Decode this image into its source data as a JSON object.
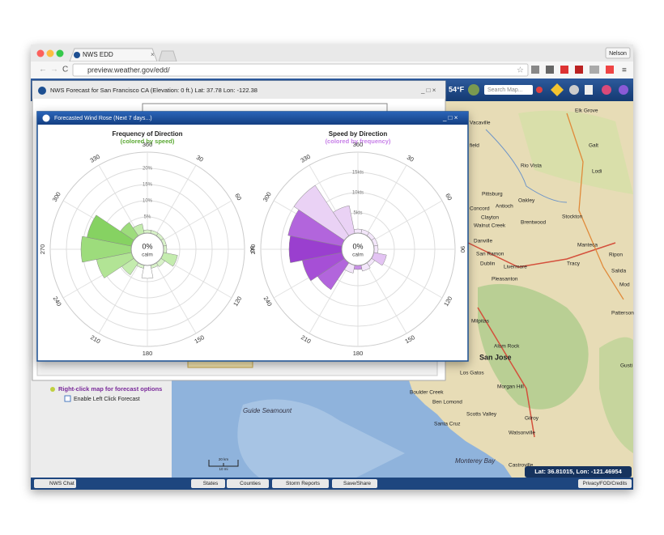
{
  "browser": {
    "tab_title": "NWS EDD",
    "url": "preview.weather.gov/edd/",
    "user": "Nelson"
  },
  "app": {
    "temperature": "54°F",
    "search_placeholder": "Search Map..."
  },
  "forecast_window": {
    "title": "NWS Forecast for San Francisco CA (Elevation: 0 ft.) Lat: 37.78 Lon: -122.38"
  },
  "wind_rose": {
    "title": "Forecasted Wind Rose (Next 7 days...)",
    "charts": [
      {
        "type": "wind_rose",
        "title": "Frequency of Direction",
        "subtitle": "(colored by speed)",
        "subtitle_color": "#5aa832",
        "center_label": "0%",
        "center_sublabel": "calm",
        "angle_ticks": [
          360,
          30,
          60,
          90,
          120,
          150,
          180,
          210,
          240,
          270,
          300,
          330
        ],
        "rlim": [
          0,
          25
        ],
        "rticks": [
          {
            "value": 5,
            "label": "5%"
          },
          {
            "value": 10,
            "label": "10%"
          },
          {
            "value": 15,
            "label": "15%"
          },
          {
            "value": 20,
            "label": "20%"
          }
        ],
        "directions": [
          0,
          22.5,
          45,
          67.5,
          90,
          112.5,
          135,
          157.5,
          180,
          202.5,
          225,
          247.5,
          270,
          292.5,
          315,
          337.5
        ],
        "values": [
          1,
          1,
          1,
          1,
          1,
          4.5,
          1.5,
          1,
          4,
          1,
          4.5,
          11,
          15.5,
          14,
          5,
          3
        ],
        "colors": [
          "#d8f2c8",
          "#d8f2c8",
          "#d8f2c8",
          "#d8f2c8",
          "#d8f2c8",
          "#c4ecae",
          "#d8f2c8",
          "#d8f2c8",
          "#ffffff",
          "#d8f2c8",
          "#c4ecae",
          "#b2e495",
          "#9ddc7c",
          "#86d262",
          "#9ddc7c",
          "#c4ecae"
        ]
      },
      {
        "type": "wind_rose",
        "title": "Speed by Direction",
        "subtitle": "(colored by frequency)",
        "subtitle_color": "#c77fe8",
        "center_label": "0%",
        "center_sublabel": "calm",
        "angle_ticks": [
          360,
          30,
          60,
          90,
          120,
          150,
          180,
          210,
          240,
          270,
          300,
          330
        ],
        "rlim": [
          0,
          20
        ],
        "rticks": [
          {
            "value": 5,
            "label": "5kts"
          },
          {
            "value": 10,
            "label": "10kts"
          },
          {
            "value": 15,
            "label": "15kts"
          }
        ],
        "directions": [
          0,
          22.5,
          45,
          67.5,
          90,
          112.5,
          135,
          157.5,
          180,
          202.5,
          225,
          247.5,
          270,
          292.5,
          315,
          337.5
        ],
        "values": [
          1,
          1,
          1,
          1,
          1,
          3.2,
          1,
          1.5,
          1,
          2,
          8,
          10,
          13,
          13.6,
          15,
          7
        ],
        "colors": [
          "#f3e6fa",
          "#f3e6fa",
          "#f3e6fa",
          "#f3e6fa",
          "#f3e6fa",
          "#e3c3f3",
          "#f3e6fa",
          "#f3e6fa",
          "#c88fe6",
          "#f3e6fa",
          "#b265dc",
          "#a64fd6",
          "#9a3fcf",
          "#b265dc",
          "#ead2f5",
          "#ead2f5"
        ]
      }
    ]
  },
  "sidebar": {
    "hint": "Right-click map for forecast options",
    "checkbox": "Enable Left Click Forecast"
  },
  "map_labels": [
    "Vacaville",
    "Elk Grove",
    "Galt",
    "Lodi",
    "Rio Vista",
    "field",
    "Pittsburg",
    "Oakley",
    "Antioch",
    "Concord",
    "Clayton",
    "Brentwood",
    "Stockton",
    "Walnut Creek",
    "Danville",
    "Manteca",
    "Ripon",
    "San Ramon",
    "Dublin",
    "Livermore",
    "Tracy",
    "Salida",
    "Mod",
    "Pleasanton",
    "Patterson",
    "Milpitas",
    "Alum Rock",
    "San Jose",
    "Los Gatos",
    "Morgan Hill",
    "Boulder Creek",
    "Ben Lomond",
    "Scotts Valley",
    "Santa Cruz",
    "Gilroy",
    "Watsonville",
    "Monterey Bay",
    "Castroville",
    "Guide Seamount",
    "Gusti"
  ],
  "scale_bar": {
    "km": "20 km",
    "mi": "10 mi"
  },
  "footer": {
    "chat": "NWS Chat",
    "buttons": [
      "States",
      "Counties",
      "Storm Reports",
      "Save/Share"
    ],
    "coords": "Lat: 36.81015, Lon: -121.46954",
    "credits": "Privacy/FOD/Credits"
  }
}
